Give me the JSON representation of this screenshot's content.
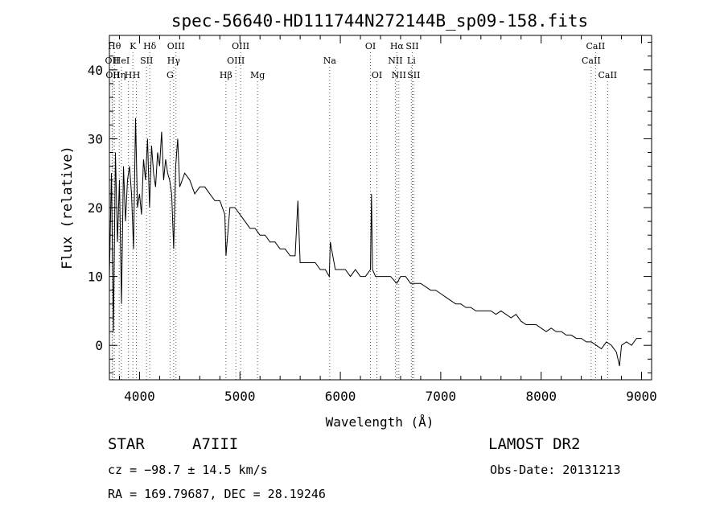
{
  "chart_data": {
    "type": "line",
    "title": "spec-56640-HD111744N272144B_sp09-158.fits",
    "xlabel": "Wavelength (Å)",
    "ylabel": "Flux (relative)",
    "xlim": [
      3700,
      9100
    ],
    "ylim": [
      -5,
      45
    ],
    "xticks": [
      4000,
      5000,
      6000,
      7000,
      8000,
      9000
    ],
    "yticks": [
      0,
      10,
      20,
      30,
      40
    ],
    "grid": false,
    "series": [
      {
        "x": [
          3700,
          3720,
          3740,
          3760,
          3780,
          3800,
          3820,
          3840,
          3860,
          3880,
          3900,
          3920,
          3940,
          3960,
          3980,
          4000,
          4020,
          4040,
          4060,
          4080,
          4100,
          4120,
          4140,
          4160,
          4180,
          4200,
          4220,
          4240,
          4260,
          4280,
          4300,
          4320,
          4340,
          4360,
          4380,
          4400,
          4450,
          4500,
          4550,
          4600,
          4650,
          4700,
          4750,
          4800,
          4850,
          4861,
          4900,
          4950,
          5000,
          5050,
          5100,
          5150,
          5200,
          5250,
          5300,
          5350,
          5400,
          5450,
          5500,
          5550,
          5577,
          5600,
          5650,
          5700,
          5750,
          5800,
          5850,
          5890,
          5900,
          5950,
          6000,
          6050,
          6100,
          6150,
          6200,
          6250,
          6300,
          6310,
          6320,
          6350,
          6400,
          6450,
          6500,
          6563,
          6600,
          6650,
          6700,
          6750,
          6800,
          6850,
          6900,
          6950,
          7000,
          7050,
          7100,
          7150,
          7200,
          7250,
          7300,
          7350,
          7400,
          7450,
          7500,
          7550,
          7600,
          7650,
          7700,
          7750,
          7800,
          7850,
          7900,
          7950,
          8000,
          8050,
          8100,
          8150,
          8200,
          8250,
          8300,
          8350,
          8400,
          8450,
          8500,
          8550,
          8600,
          8650,
          8700,
          8750,
          8780,
          8800,
          8850,
          8900,
          8950,
          9000
        ],
        "y": [
          10,
          25,
          2,
          28,
          15,
          24,
          6,
          26,
          18,
          24,
          26,
          22,
          14,
          33,
          20,
          22,
          19,
          27,
          24,
          30,
          20,
          29,
          25,
          23,
          28,
          26,
          31,
          24,
          27,
          25,
          24,
          22,
          14,
          26,
          30,
          23,
          25,
          24,
          22,
          23,
          23,
          22,
          21,
          21,
          19,
          13,
          20,
          20,
          19,
          18,
          17,
          17,
          16,
          16,
          15,
          15,
          14,
          14,
          13,
          13,
          21,
          12,
          12,
          12,
          12,
          11,
          11,
          10,
          15,
          11,
          11,
          11,
          10,
          11,
          10,
          10,
          11,
          22,
          11,
          10,
          10,
          10,
          10,
          9,
          10,
          10,
          9,
          9,
          9,
          8.5,
          8,
          8,
          7.5,
          7,
          6.5,
          6,
          6,
          5.5,
          5.5,
          5,
          5,
          5,
          5,
          4.5,
          5,
          4.5,
          4,
          4.5,
          3.5,
          3,
          3,
          3,
          2.5,
          2,
          2.5,
          2,
          2,
          1.5,
          1.5,
          1,
          1,
          0.5,
          0.5,
          0,
          -0.5,
          0.5,
          0,
          -1,
          -3,
          0,
          0.5,
          0,
          1,
          1
        ]
      }
    ],
    "lines": [
      {
        "x": 3727,
        "label": "OII",
        "row": 2
      },
      {
        "x": 3734,
        "label": "OII",
        "row": 3
      },
      {
        "x": 3750,
        "label": "Hθ",
        "row": 1
      },
      {
        "x": 3798,
        "label": "Hη",
        "row": 3
      },
      {
        "x": 3820,
        "label": "HeI",
        "row": 2
      },
      {
        "x": 3889,
        "label": "H",
        "row": 3
      },
      {
        "x": 3934,
        "label": "K",
        "row": 1
      },
      {
        "x": 3969,
        "label": "H",
        "row": 3
      },
      {
        "x": 4070,
        "label": "SII",
        "row": 2
      },
      {
        "x": 4102,
        "label": "Hδ",
        "row": 1
      },
      {
        "x": 4304,
        "label": "G",
        "row": 3
      },
      {
        "x": 4340,
        "label": "Hγ",
        "row": 2
      },
      {
        "x": 4363,
        "label": "OIII",
        "row": 1
      },
      {
        "x": 4861,
        "label": "Hβ",
        "row": 3
      },
      {
        "x": 4959,
        "label": "OIII",
        "row": 2
      },
      {
        "x": 5007,
        "label": "OIII",
        "row": 1
      },
      {
        "x": 5175,
        "label": "Mg",
        "row": 3
      },
      {
        "x": 5894,
        "label": "Na",
        "row": 2
      },
      {
        "x": 6300,
        "label": "OI",
        "row": 1
      },
      {
        "x": 6364,
        "label": "OI",
        "row": 3
      },
      {
        "x": 6548,
        "label": "NII",
        "row": 2
      },
      {
        "x": 6563,
        "label": "Hα",
        "row": 1
      },
      {
        "x": 6583,
        "label": "NII",
        "row": 3
      },
      {
        "x": 6707,
        "label": "Li",
        "row": 2
      },
      {
        "x": 6716,
        "label": "SII",
        "row": 1
      },
      {
        "x": 6731,
        "label": "SII",
        "row": 3
      },
      {
        "x": 8498,
        "label": "CaII",
        "row": 2
      },
      {
        "x": 8542,
        "label": "CaII",
        "row": 1
      },
      {
        "x": 8662,
        "label": "CaII",
        "row": 3
      }
    ]
  },
  "info": {
    "object_class": "STAR",
    "subclass": "A7III",
    "survey": "LAMOST DR2",
    "cz": "cz = −98.7 ± 14.5 km/s",
    "obs_date": "Obs-Date: 20131213",
    "coords": "RA = 169.79687, DEC =  28.19246"
  }
}
